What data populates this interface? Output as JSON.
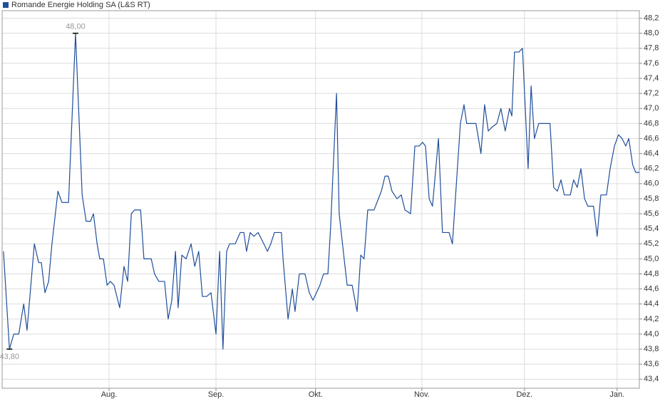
{
  "chart_data": {
    "type": "line",
    "series": [
      {
        "name": "Romande Energie Holding SA (L&S RT)",
        "color": "#1f4e9c",
        "x": [
          -0.8,
          1.0,
          2.3,
          3.8,
          5.3,
          6.3,
          8.5,
          9.8,
          10.6,
          11.7,
          12.8,
          13.8,
          15.6,
          16.8,
          18.8,
          20.9,
          22.9,
          24.1,
          25.4,
          26.3,
          27.4,
          28.2,
          29.3,
          30.4,
          31.4,
          32.5,
          34.2,
          35.5,
          36.6,
          37.7,
          38.7,
          40.5,
          41.5,
          42.6,
          43.7,
          44.7,
          46.0,
          47.7,
          48.8,
          49.9,
          51.0,
          51.8,
          52.9,
          54.2,
          55.7,
          56.8,
          58.0,
          59.1,
          60.4,
          61.7,
          63.2,
          64.3,
          65.3,
          66.4,
          67.3,
          69.0,
          70.5,
          71.6,
          72.4,
          73.5,
          74.6,
          75.9,
          77.6,
          78.7,
          79.7,
          80.8,
          82.9,
          83.4,
          84.9,
          86.2,
          87.0,
          88.3,
          90.0,
          91.3,
          92.4,
          94.5,
          95.6,
          96.9,
          97.7,
          99.5,
          100.3,
          101.8,
          102.7,
          104.2,
          105.7,
          106.8,
          107.8,
          108.9,
          110.8,
          113.0,
          114.1,
          115.1,
          116.2,
          117.7,
          119.0,
          120.1,
          121.8,
          123.1,
          124.4,
          125.4,
          126.3,
          127.4,
          128.4,
          130.2,
          131.4,
          133.4,
          134.4,
          136.8,
          137.9,
          138.7,
          141.5,
          143.0,
          144.1,
          145.2,
          146.3,
          147.8,
          149.0,
          150.3,
          151.6,
          152.3,
          153.1,
          154.4,
          155.5,
          157.2,
          158.1,
          159.1,
          160.4,
          162.8,
          163.8,
          164.9,
          166.0,
          167.1,
          168.1,
          169.9,
          170.9,
          172.0,
          173.1,
          174.2,
          175.2,
          176.9,
          178.0,
          179.1,
          180.8,
          181.9,
          183.2,
          184.4,
          185.5,
          186.6,
          187.5,
          188.7,
          189.6,
          190.7
        ],
        "values": [
          45.1,
          43.8,
          44.0,
          44.0,
          44.4,
          44.05,
          45.2,
          44.95,
          44.95,
          44.55,
          44.7,
          45.2,
          45.9,
          45.75,
          45.75,
          48.0,
          45.85,
          45.5,
          45.5,
          45.6,
          45.2,
          45.0,
          45.0,
          44.65,
          44.7,
          44.65,
          44.35,
          44.9,
          44.7,
          45.6,
          45.65,
          45.65,
          45.0,
          45.0,
          45.0,
          44.8,
          44.7,
          44.7,
          44.2,
          44.45,
          45.1,
          44.35,
          45.05,
          45.0,
          45.2,
          44.9,
          45.1,
          44.5,
          44.5,
          44.55,
          44.0,
          45.1,
          43.8,
          45.1,
          45.2,
          45.2,
          45.35,
          45.35,
          45.1,
          45.35,
          45.3,
          45.35,
          45.2,
          45.1,
          45.2,
          45.35,
          45.35,
          45.0,
          44.2,
          44.6,
          44.3,
          44.8,
          44.8,
          44.55,
          44.45,
          44.65,
          44.8,
          44.8,
          45.4,
          47.2,
          45.6,
          45.0,
          44.65,
          44.65,
          44.3,
          45.05,
          45.0,
          45.65,
          45.65,
          45.9,
          46.1,
          46.1,
          45.9,
          45.8,
          45.85,
          45.65,
          45.6,
          46.5,
          46.5,
          46.55,
          46.5,
          45.8,
          45.7,
          46.6,
          45.35,
          45.35,
          45.2,
          46.8,
          47.05,
          46.8,
          46.8,
          46.4,
          47.05,
          46.7,
          46.75,
          46.8,
          47.0,
          46.7,
          47.0,
          46.9,
          47.75,
          47.75,
          47.8,
          46.2,
          47.3,
          46.6,
          46.8,
          46.8,
          46.8,
          45.95,
          45.9,
          46.05,
          45.85,
          45.85,
          46.05,
          45.95,
          46.2,
          45.8,
          45.7,
          45.7,
          45.3,
          45.85,
          45.85,
          46.2,
          46.5,
          46.65,
          46.6,
          46.5,
          46.6,
          46.25,
          46.15,
          46.15
        ]
      }
    ],
    "xlim": [
      -1.2,
      190.7
    ],
    "xticks": [
      {
        "value": 31.0,
        "label": "Aug."
      },
      {
        "value": 63.2,
        "label": "Sep."
      },
      {
        "value": 93.2,
        "label": "Okt."
      },
      {
        "value": 125.2,
        "label": "Nov."
      },
      {
        "value": 156.1,
        "label": "Dez."
      },
      {
        "value": 184.0,
        "label": "Jan."
      }
    ],
    "ylim": [
      43.28,
      48.3
    ],
    "yticks": [
      {
        "value": 43.4,
        "label": "43,4"
      },
      {
        "value": 43.6,
        "label": "43,6"
      },
      {
        "value": 43.8,
        "label": "43,8"
      },
      {
        "value": 44.0,
        "label": "44,0"
      },
      {
        "value": 44.2,
        "label": "44,2"
      },
      {
        "value": 44.4,
        "label": "44,4"
      },
      {
        "value": 44.6,
        "label": "44,6"
      },
      {
        "value": 44.8,
        "label": "44,8"
      },
      {
        "value": 45.0,
        "label": "45,0"
      },
      {
        "value": 45.2,
        "label": "45,2"
      },
      {
        "value": 45.4,
        "label": "45,4"
      },
      {
        "value": 45.6,
        "label": "45,6"
      },
      {
        "value": 45.8,
        "label": "45,8"
      },
      {
        "value": 46.0,
        "label": "46,0"
      },
      {
        "value": 46.2,
        "label": "46,2"
      },
      {
        "value": 46.4,
        "label": "46,4"
      },
      {
        "value": 46.6,
        "label": "46,6"
      },
      {
        "value": 46.8,
        "label": "46,8"
      },
      {
        "value": 47.0,
        "label": "47,0"
      },
      {
        "value": 47.2,
        "label": "47,2"
      },
      {
        "value": 47.4,
        "label": "47,4"
      },
      {
        "value": 47.6,
        "label": "47,6"
      },
      {
        "value": 47.8,
        "label": "47,8"
      },
      {
        "value": 48.0,
        "label": "48,0"
      },
      {
        "value": 48.2,
        "label": "48,2"
      }
    ],
    "grid": true,
    "legend": "top-left",
    "annotations": [
      {
        "x": 20.9,
        "y": 48.0,
        "label": "48,00",
        "position": "above"
      },
      {
        "x": 1.0,
        "y": 43.8,
        "label": "43,80",
        "position": "below"
      }
    ]
  }
}
